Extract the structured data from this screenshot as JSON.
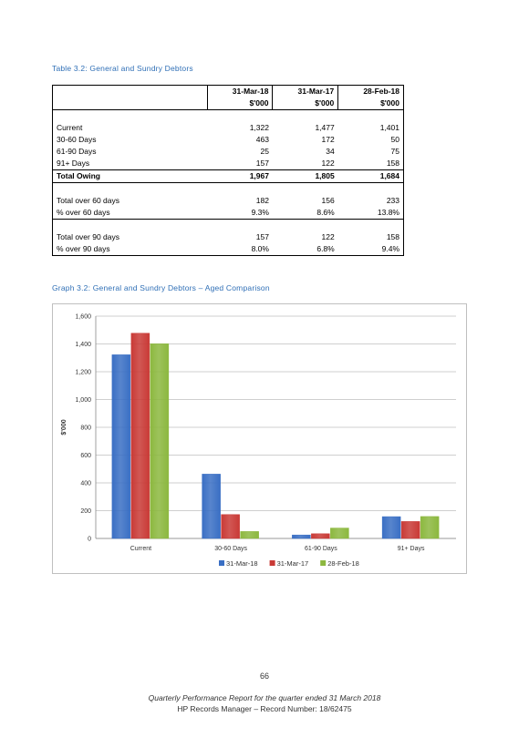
{
  "table": {
    "caption": "Table 3.2:  General and Sundry Debtors",
    "headers": [
      "31-Mar-18",
      "31-Mar-17",
      "28-Feb-18"
    ],
    "units": [
      "$'000",
      "$'000",
      "$'000"
    ],
    "rows": [
      {
        "label": "Current",
        "values": [
          "1,322",
          "1,477",
          "1,401"
        ]
      },
      {
        "label": "30-60 Days",
        "values": [
          "463",
          "172",
          "50"
        ]
      },
      {
        "label": "61-90 Days",
        "values": [
          "25",
          "34",
          "75"
        ]
      },
      {
        "label": "91+ Days",
        "values": [
          "157",
          "122",
          "158"
        ]
      },
      {
        "label": "Total Owing",
        "values": [
          "1,967",
          "1,805",
          "1,684"
        ]
      },
      {
        "label": "Total over 60 days",
        "values": [
          "182",
          "156",
          "233"
        ]
      },
      {
        "label": "% over 60 days",
        "values": [
          "9.3%",
          "8.6%",
          "13.8%"
        ]
      },
      {
        "label": "Total over 90 days",
        "values": [
          "157",
          "122",
          "158"
        ]
      },
      {
        "label": "% over 90 days",
        "values": [
          "8.0%",
          "6.8%",
          "9.4%"
        ]
      }
    ]
  },
  "graph": {
    "caption": "Graph 3.2:  General and Sundry Debtors – Aged Comparison"
  },
  "chart_data": {
    "type": "bar",
    "title": "",
    "xlabel": "",
    "ylabel": "$'000",
    "ylim": [
      0,
      1600
    ],
    "yticks": [
      0,
      200,
      400,
      600,
      800,
      1000,
      1200,
      1400,
      1600
    ],
    "ytick_labels": [
      "0",
      "200",
      "400",
      "600",
      "800",
      "1,000",
      "1,200",
      "1,400",
      "1,600"
    ],
    "categories": [
      "Current",
      "30-60 Days",
      "61-90 Days",
      "91+ Days"
    ],
    "series": [
      {
        "name": "31-Mar-18",
        "values": [
          1322,
          463,
          25,
          157
        ],
        "color": "#3a6fc4"
      },
      {
        "name": "31-Mar-17",
        "values": [
          1477,
          172,
          34,
          122
        ],
        "color": "#c93a36"
      },
      {
        "name": "28-Feb-18",
        "values": [
          1401,
          50,
          75,
          158
        ],
        "color": "#8cb83f"
      }
    ],
    "grid": true,
    "legend": "bottom"
  },
  "footer": {
    "page_number": "66",
    "line1": "Quarterly Performance Report for the quarter ended 31 March 2018",
    "line2": "HP Records Manager – Record Number: 18/62475"
  }
}
